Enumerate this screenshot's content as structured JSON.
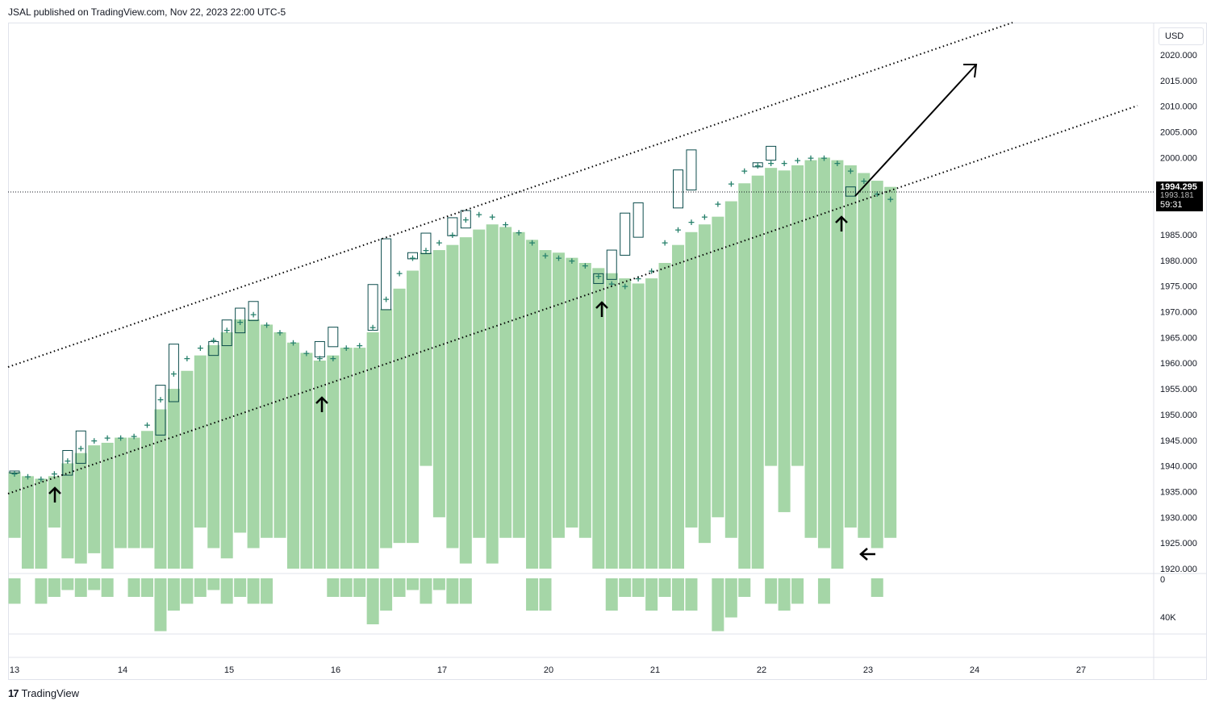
{
  "header": {
    "published": "JSAL published on TradingView.com, Nov 22, 2023 22:00 UTC-5"
  },
  "footer": {
    "brand": "TradingView",
    "logo_text": "17"
  },
  "price_scale": {
    "currency": "USD",
    "current_price": "1994.295",
    "hidden_price": "1993.181",
    "countdown": "59:31"
  },
  "colors": {
    "volume_bar": "#a5d6a7",
    "candle_border": "#0d4d4d",
    "marker": "#26806b",
    "line": "#000000",
    "grid_border": "#e0e3eb"
  },
  "chart_data": {
    "type": "bar",
    "price_axis": {
      "ticks": [
        "2020.000",
        "2015.000",
        "2010.000",
        "2005.000",
        "2000.000",
        "1985.000",
        "1980.000",
        "1975.000",
        "1970.000",
        "1965.000",
        "1960.000",
        "1955.000",
        "1950.000",
        "1945.000",
        "1940.000",
        "1935.000",
        "1930.000",
        "1925.000",
        "1920.000"
      ],
      "range": [
        1920,
        2024
      ]
    },
    "volume_axis": {
      "ticks": [
        "0",
        "40K"
      ]
    },
    "x_axis": {
      "labels": [
        "13",
        "14",
        "15",
        "16",
        "17",
        "20",
        "21",
        "22",
        "23",
        "24",
        "27"
      ]
    },
    "volume_bars": [
      1926,
      1920,
      1920,
      1928,
      1922,
      1921,
      1923,
      1920,
      1924,
      1924,
      1924,
      1920,
      1920,
      1920,
      1928,
      1924,
      1922,
      1927,
      1924,
      1926,
      1926,
      1920,
      1920,
      1920,
      1920,
      1920,
      1920,
      1920,
      1924,
      1925,
      1925,
      1940,
      1930,
      1924,
      1921,
      1926,
      1921,
      1926,
      1926,
      1920,
      1920,
      1926,
      1928,
      1926,
      1920,
      1920,
      1920,
      1920,
      1920,
      1920,
      1920,
      1928,
      1925,
      1930,
      1926,
      1920,
      1920,
      1940,
      1931,
      1940,
      1926,
      1924,
      1920,
      1928,
      1926,
      1924,
      1926,
      1920,
      1920,
      1920,
      1920,
      1924
    ],
    "bar_tops": [
      1938.8,
      1938,
      1937.5,
      1938,
      1940.5,
      1942.5,
      1944,
      1944.5,
      1945.5,
      1945.5,
      1946.8,
      1951,
      1955,
      1958.5,
      1961.5,
      1963.5,
      1966,
      1968.5,
      1968.5,
      1967.5,
      1966,
      1964,
      1962,
      1960.5,
      1961.5,
      1963,
      1963,
      1966,
      1970.5,
      1974.5,
      1978,
      1981.5,
      1982,
      1983,
      1984.5,
      1986,
      1987,
      1986.5,
      1985.5,
      1984,
      1982,
      1981.5,
      1980.5,
      1979.5,
      1978.5,
      1977.5,
      1976.5,
      1975.5,
      1976.5,
      1979.5,
      1983,
      1985.5,
      1987,
      1988.5,
      1991.5,
      1995,
      1996.5,
      1998,
      1997.5,
      1998.5,
      1999.5,
      2000,
      1999.5,
      1998.5,
      1997,
      1995.5,
      1994.3
    ],
    "hollow_candles": [
      {
        "i": 0,
        "o": 1938.6,
        "c": 1939
      },
      {
        "i": 4,
        "o": 1938.2,
        "c": 1943
      },
      {
        "i": 5,
        "o": 1940.5,
        "c": 1946.8
      },
      {
        "i": 11,
        "o": 1946,
        "c": 1955.7
      },
      {
        "i": 12,
        "o": 1952.5,
        "c": 1963.7
      },
      {
        "i": 15,
        "o": 1961.5,
        "c": 1964.2
      },
      {
        "i": 16,
        "o": 1963.4,
        "c": 1968.4
      },
      {
        "i": 17,
        "o": 1965.9,
        "c": 1970.7
      },
      {
        "i": 18,
        "o": 1968.3,
        "c": 1972
      },
      {
        "i": 23,
        "o": 1961.2,
        "c": 1964.2
      },
      {
        "i": 24,
        "o": 1963.2,
        "c": 1967
      },
      {
        "i": 27,
        "o": 1966.4,
        "c": 1975.3
      },
      {
        "i": 28,
        "o": 1970.4,
        "c": 1984.2
      },
      {
        "i": 30,
        "o": 1980.3,
        "c": 1981.5
      },
      {
        "i": 31,
        "o": 1981.3,
        "c": 1985.3
      },
      {
        "i": 33,
        "o": 1984.8,
        "c": 1988.3
      },
      {
        "i": 34,
        "o": 1986.3,
        "c": 1989.7
      },
      {
        "i": 44,
        "o": 1975.5,
        "c": 1977.4
      },
      {
        "i": 45,
        "o": 1976.3,
        "c": 1982
      },
      {
        "i": 46,
        "o": 1981,
        "c": 1989.2
      },
      {
        "i": 47,
        "o": 1984.5,
        "c": 1991.2
      },
      {
        "i": 50,
        "o": 1990.2,
        "c": 1997.6
      },
      {
        "i": 51,
        "o": 1993.7,
        "c": 2001.5
      },
      {
        "i": 56,
        "o": 1998.2,
        "c": 1999
      },
      {
        "i": 57,
        "o": 1999.5,
        "c": 2002.2
      },
      {
        "i": 63,
        "o": 1992.5,
        "c": 1994.3
      }
    ],
    "markers": [
      1938.5,
      1938,
      1937.5,
      1938.5,
      1941,
      1943.5,
      1945,
      1945.5,
      1945.5,
      1945.8,
      1948,
      1953,
      1958,
      1961,
      1963,
      1964.5,
      1966.5,
      1968,
      1969.5,
      1967.5,
      1966,
      1964,
      1962,
      1961,
      1961,
      1963,
      1963.5,
      1967,
      1972.5,
      1977.5,
      1980.5,
      1982,
      1983.5,
      1985,
      1988,
      1989,
      1988.5,
      1987,
      1985.5,
      1983.5,
      1981,
      1980.5,
      1980,
      1979,
      1977,
      1975.5,
      1975,
      1976.5,
      1978,
      1983.5,
      1986,
      1987.5,
      1988.5,
      1991,
      1995,
      1997.5,
      1998.5,
      1999,
      1999,
      1999.5,
      2000,
      2000,
      1999,
      1997.5,
      1995.5,
      1993,
      1992
    ],
    "volume_histogram": [
      3,
      0,
      3,
      2,
      1,
      2,
      1,
      2,
      0,
      2,
      2,
      7,
      4,
      3,
      2,
      1,
      3,
      2,
      3,
      3,
      0,
      0,
      0,
      0,
      2,
      2,
      2,
      6,
      4,
      2,
      1,
      3,
      1,
      3,
      3,
      0,
      0,
      0,
      0,
      4,
      4,
      0,
      0,
      0,
      0,
      4,
      2,
      2,
      4,
      2,
      4,
      4,
      0,
      7,
      5,
      2,
      0,
      3,
      4,
      3,
      0,
      3,
      0,
      0,
      0,
      2
    ]
  }
}
